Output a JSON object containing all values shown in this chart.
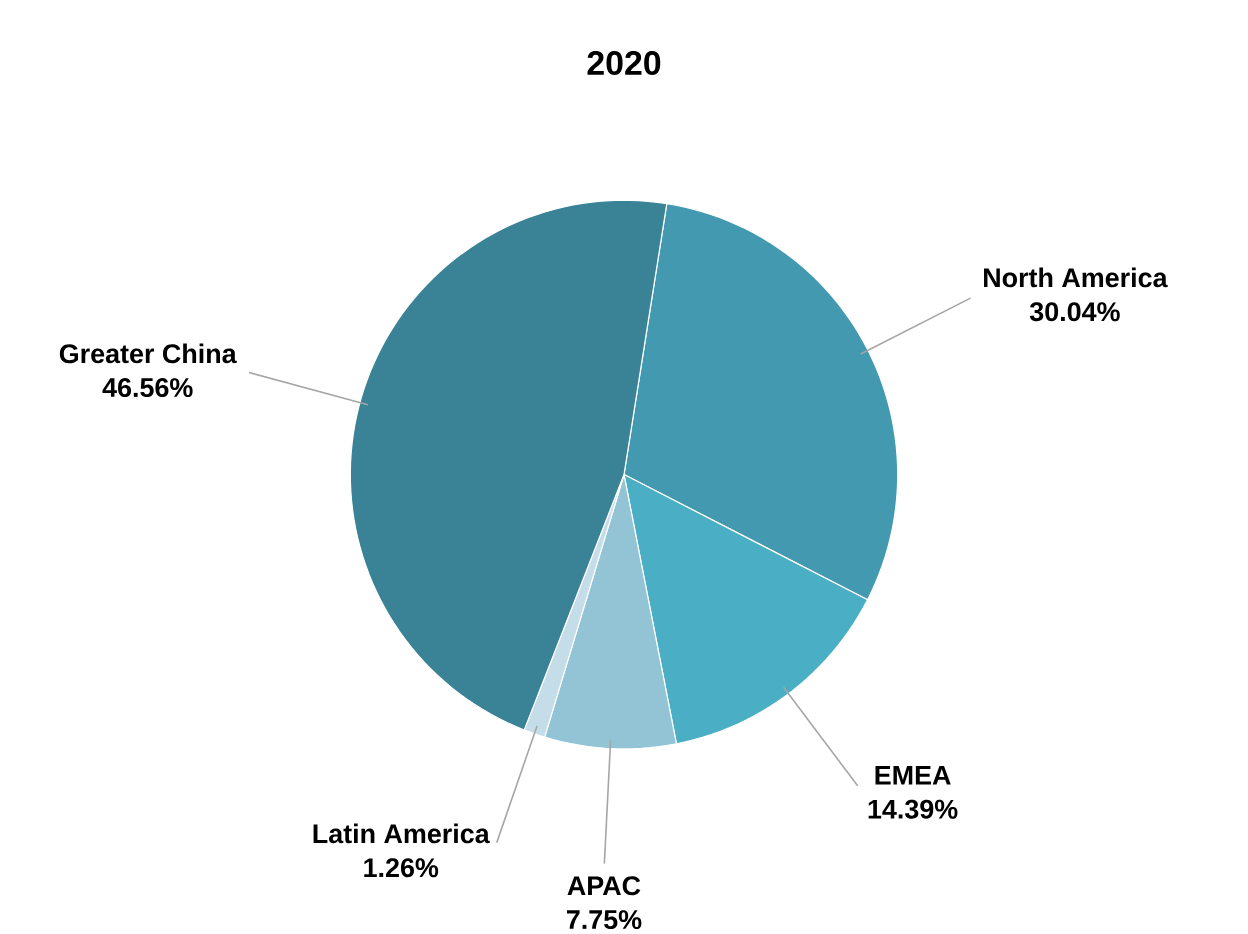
{
  "chart_data": {
    "type": "pie",
    "title": "2020",
    "categories": [
      "North America",
      "EMEA",
      "APAC",
      "Latin America",
      "Greater China"
    ],
    "values": [
      30.04,
      14.39,
      7.75,
      1.26,
      46.56
    ],
    "colors": [
      "#4399b0",
      "#4aaec5",
      "#93c4d5",
      "#c5dde8",
      "#3a8397"
    ],
    "value_labels": [
      "30.04%",
      "14.39%",
      "7.75%",
      "1.26%",
      "46.56%"
    ]
  }
}
